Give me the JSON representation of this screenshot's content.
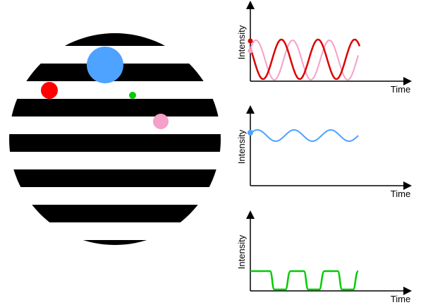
{
  "panels": [
    {
      "y_label": "Intensity",
      "x_label": "Time"
    },
    {
      "y_label": "Intensity",
      "x_label": "Time"
    },
    {
      "y_label": "Intensity",
      "x_label": "Time"
    }
  ]
}
